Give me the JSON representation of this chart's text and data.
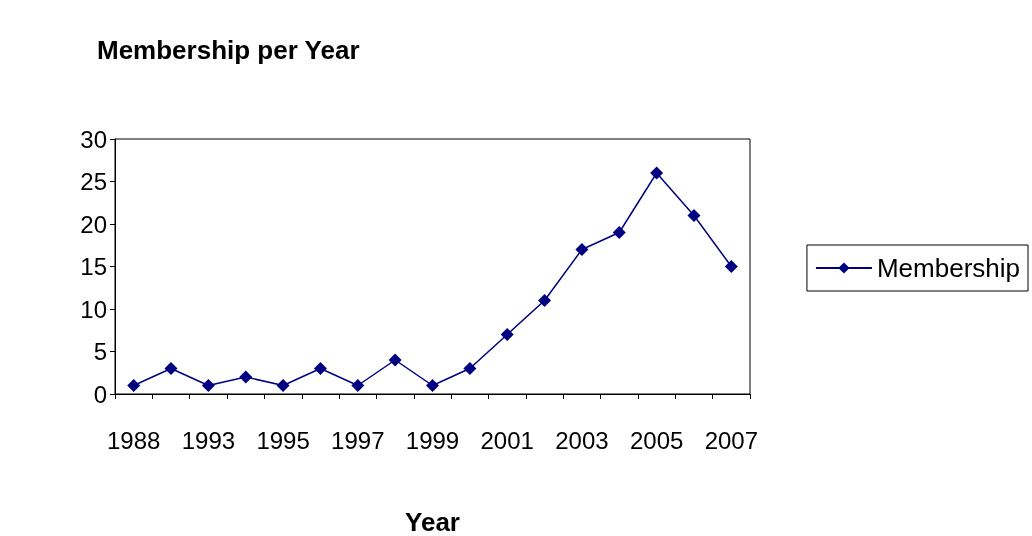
{
  "chart_data": {
    "type": "line",
    "title": "Membership per Year",
    "xlabel": "Year",
    "categories": [
      "1988",
      null,
      "1993",
      null,
      "1995",
      null,
      "1997",
      null,
      "1999",
      null,
      "2001",
      null,
      "2003",
      null,
      "2005",
      null,
      "2007"
    ],
    "series": [
      {
        "name": "Membership",
        "color": "#000080",
        "values": [
          1,
          3,
          1,
          2,
          1,
          3,
          1,
          4,
          1,
          3,
          7,
          11,
          17,
          19,
          26,
          21,
          15
        ]
      }
    ],
    "ylim": [
      0,
      30
    ],
    "yticks": [
      0,
      5,
      10,
      15,
      20,
      25,
      30
    ],
    "grid": false,
    "legend": "right",
    "marker": "diamond",
    "line_style": "solid"
  }
}
